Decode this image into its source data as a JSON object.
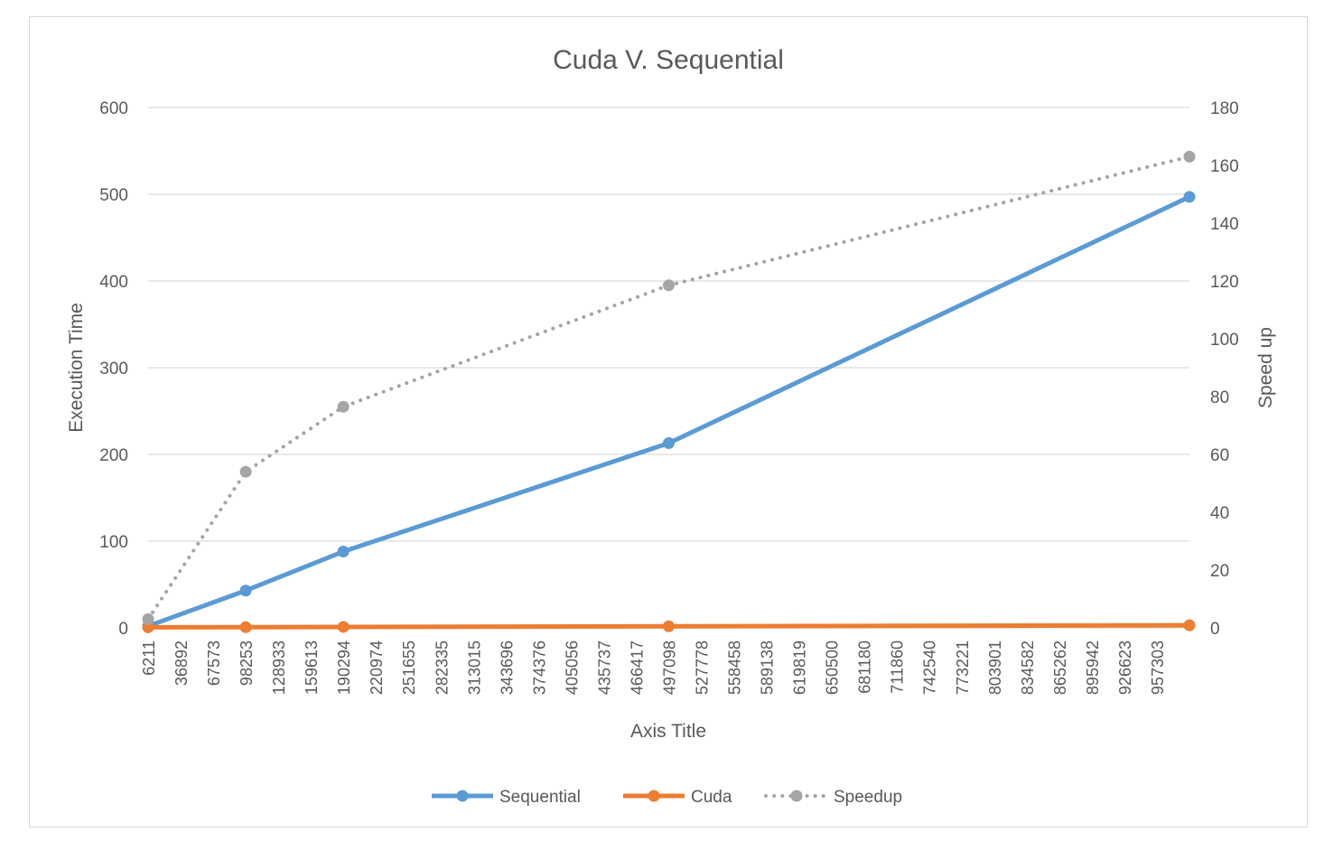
{
  "chart_data": {
    "type": "line",
    "title": "Cuda V. Sequential",
    "xlabel": "Axis Title",
    "ylabel_left": "Execution Time",
    "ylabel_right": "Speed up",
    "ylim_left": [
      0,
      600
    ],
    "yticks_left": [
      0,
      100,
      200,
      300,
      400,
      500,
      600
    ],
    "ylim_right": [
      0,
      180
    ],
    "yticks_right": [
      0,
      20,
      40,
      60,
      80,
      100,
      120,
      140,
      160,
      180
    ],
    "x_tick_labels": [
      "6211",
      "36892",
      "67573",
      "98253",
      "128933",
      "159613",
      "190294",
      "220974",
      "251655",
      "282335",
      "313015",
      "343696",
      "374376",
      "405056",
      "435737",
      "466417",
      "497098",
      "527778",
      "558458",
      "589138",
      "619819",
      "650500",
      "681180",
      "711860",
      "742540",
      "773221",
      "803901",
      "834582",
      "865262",
      "895942",
      "926623",
      "957303"
    ],
    "x_range": [
      6211,
      988000
    ],
    "grid": true,
    "legend_position": "bottom",
    "series": [
      {
        "name": "Sequential",
        "axis": "left",
        "color": "#5b9bd5",
        "style": "solid",
        "x": [
          6211,
          98253,
          190294,
          497098,
          988000
        ],
        "values": [
          2,
          43,
          88,
          213,
          497
        ]
      },
      {
        "name": "Cuda",
        "axis": "left",
        "color": "#ed7d31",
        "style": "solid",
        "x": [
          6211,
          98253,
          190294,
          497098,
          988000
        ],
        "values": [
          0.6,
          0.8,
          1.1,
          1.8,
          3.0
        ]
      },
      {
        "name": "Speedup",
        "axis": "right",
        "color": "#a5a5a5",
        "style": "dotted",
        "x": [
          6211,
          98253,
          190294,
          497098,
          988000
        ],
        "values": [
          3,
          54,
          76.5,
          118.5,
          163
        ]
      }
    ]
  }
}
